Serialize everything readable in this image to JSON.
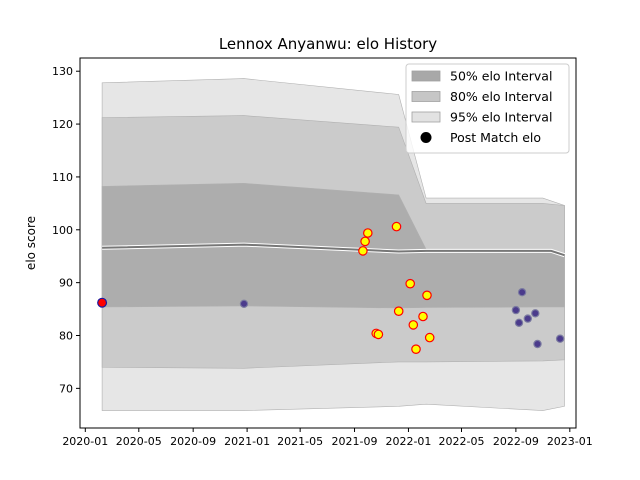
{
  "chart_data": {
    "type": "scatter",
    "title": "Lennox Anyanwu: elo History",
    "xlabel": "",
    "ylabel": "elo score",
    "x_ticks": [
      "2020-01-01",
      "2020-05-01",
      "2020-09-01",
      "2021-01-01",
      "2021-05-01",
      "2021-09-01",
      "2022-01-01",
      "2022-05-01",
      "2022-09-01",
      "2023-01-01"
    ],
    "y_ticks": [
      70,
      80,
      90,
      100,
      110,
      120,
      130
    ],
    "xlim": [
      "2019-12-20",
      "2023-01-15"
    ],
    "ylim": [
      62.5,
      132.5
    ],
    "grid": false,
    "legend_position": "top-right",
    "legend": [
      {
        "label": "50% elo Interval",
        "color": "#a8a8a8"
      },
      {
        "label": "80% elo Interval",
        "color": "#c6c6c6"
      },
      {
        "label": "95% elo Interval",
        "color": "#e2e2e2"
      },
      {
        "label": "Post Match elo",
        "color": "#000000"
      }
    ],
    "mean_line": {
      "name": "mean elo",
      "points": [
        {
          "x": "2020-02-08",
          "y": 96.6
        },
        {
          "x": "2020-12-25",
          "y": 97.2
        },
        {
          "x": "2021-12-10",
          "y": 95.9
        },
        {
          "x": "2022-02-10",
          "y": 96.0
        },
        {
          "x": "2022-11-20",
          "y": 96.0
        },
        {
          "x": "2022-12-20",
          "y": 95.2
        }
      ]
    },
    "intervals": [
      {
        "name": "95% elo Interval",
        "color": "#e2e2e2",
        "points": [
          {
            "x": "2020-02-08",
            "upper": 127.8,
            "lower": 65.8
          },
          {
            "x": "2020-12-25",
            "upper": 128.6,
            "lower": 65.8
          },
          {
            "x": "2021-12-10",
            "upper": 125.6,
            "lower": 66.6
          },
          {
            "x": "2022-02-10",
            "upper": 106.0,
            "lower": 67.0
          },
          {
            "x": "2022-11-01",
            "upper": 106.0,
            "lower": 65.8
          },
          {
            "x": "2022-12-20",
            "upper": 104.6,
            "lower": 66.6
          }
        ]
      },
      {
        "name": "80% elo Interval",
        "color": "#c6c6c6",
        "points": [
          {
            "x": "2020-02-08",
            "upper": 121.2,
            "lower": 74.0
          },
          {
            "x": "2020-12-25",
            "upper": 121.6,
            "lower": 73.8
          },
          {
            "x": "2021-12-10",
            "upper": 119.4,
            "lower": 75.0
          },
          {
            "x": "2022-02-10",
            "upper": 105.0,
            "lower": 75.0
          },
          {
            "x": "2022-11-01",
            "upper": 105.0,
            "lower": 75.2
          },
          {
            "x": "2022-12-20",
            "upper": 104.6,
            "lower": 75.4
          }
        ]
      },
      {
        "name": "50% elo Interval",
        "color": "#a8a8a8",
        "points": [
          {
            "x": "2020-02-08",
            "upper": 108.2,
            "lower": 85.4
          },
          {
            "x": "2020-12-25",
            "upper": 108.8,
            "lower": 85.6
          },
          {
            "x": "2021-12-10",
            "upper": 106.6,
            "lower": 85.2
          },
          {
            "x": "2022-02-10",
            "upper": 96.3,
            "lower": 85.3
          },
          {
            "x": "2022-11-01",
            "upper": 96.3,
            "lower": 85.4
          },
          {
            "x": "2022-12-20",
            "upper": 95.4,
            "lower": 85.4
          }
        ]
      }
    ],
    "series": [
      {
        "name": "Post Match elo",
        "points": [
          {
            "x": "2020-02-08",
            "y": 86.2,
            "style": "red-fill-blue-edge"
          },
          {
            "x": "2020-12-25",
            "y": 86.0,
            "style": "blue-fill-gray-edge"
          },
          {
            "x": "2021-09-20",
            "y": 96.0,
            "style": "yellow-fill-red-edge"
          },
          {
            "x": "2021-09-25",
            "y": 97.8,
            "style": "yellow-fill-red-edge"
          },
          {
            "x": "2021-10-01",
            "y": 99.4,
            "style": "yellow-fill-red-edge"
          },
          {
            "x": "2021-10-20",
            "y": 80.4,
            "style": "yellow-fill-red-edge"
          },
          {
            "x": "2021-10-25",
            "y": 80.2,
            "style": "yellow-fill-red-edge"
          },
          {
            "x": "2021-12-05",
            "y": 100.6,
            "style": "yellow-fill-red-edge"
          },
          {
            "x": "2021-12-10",
            "y": 84.6,
            "style": "yellow-fill-red-edge"
          },
          {
            "x": "2022-01-05",
            "y": 89.8,
            "style": "yellow-fill-red-edge"
          },
          {
            "x": "2022-01-12",
            "y": 82.0,
            "style": "yellow-fill-red-edge"
          },
          {
            "x": "2022-01-18",
            "y": 77.4,
            "style": "yellow-fill-red-edge"
          },
          {
            "x": "2022-02-03",
            "y": 83.6,
            "style": "yellow-fill-red-edge"
          },
          {
            "x": "2022-02-12",
            "y": 87.6,
            "style": "yellow-fill-red-edge"
          },
          {
            "x": "2022-02-18",
            "y": 79.6,
            "style": "yellow-fill-red-edge"
          },
          {
            "x": "2022-09-01",
            "y": 84.8,
            "style": "blue-fill-gray-edge"
          },
          {
            "x": "2022-09-08",
            "y": 82.4,
            "style": "blue-fill-gray-edge"
          },
          {
            "x": "2022-09-15",
            "y": 88.2,
            "style": "blue-fill-gray-edge"
          },
          {
            "x": "2022-09-28",
            "y": 83.2,
            "style": "blue-fill-gray-edge"
          },
          {
            "x": "2022-10-15",
            "y": 84.2,
            "style": "blue-fill-gray-edge"
          },
          {
            "x": "2022-10-20",
            "y": 78.4,
            "style": "blue-fill-gray-edge"
          },
          {
            "x": "2022-12-10",
            "y": 79.4,
            "style": "blue-fill-gray-edge"
          }
        ]
      }
    ]
  }
}
